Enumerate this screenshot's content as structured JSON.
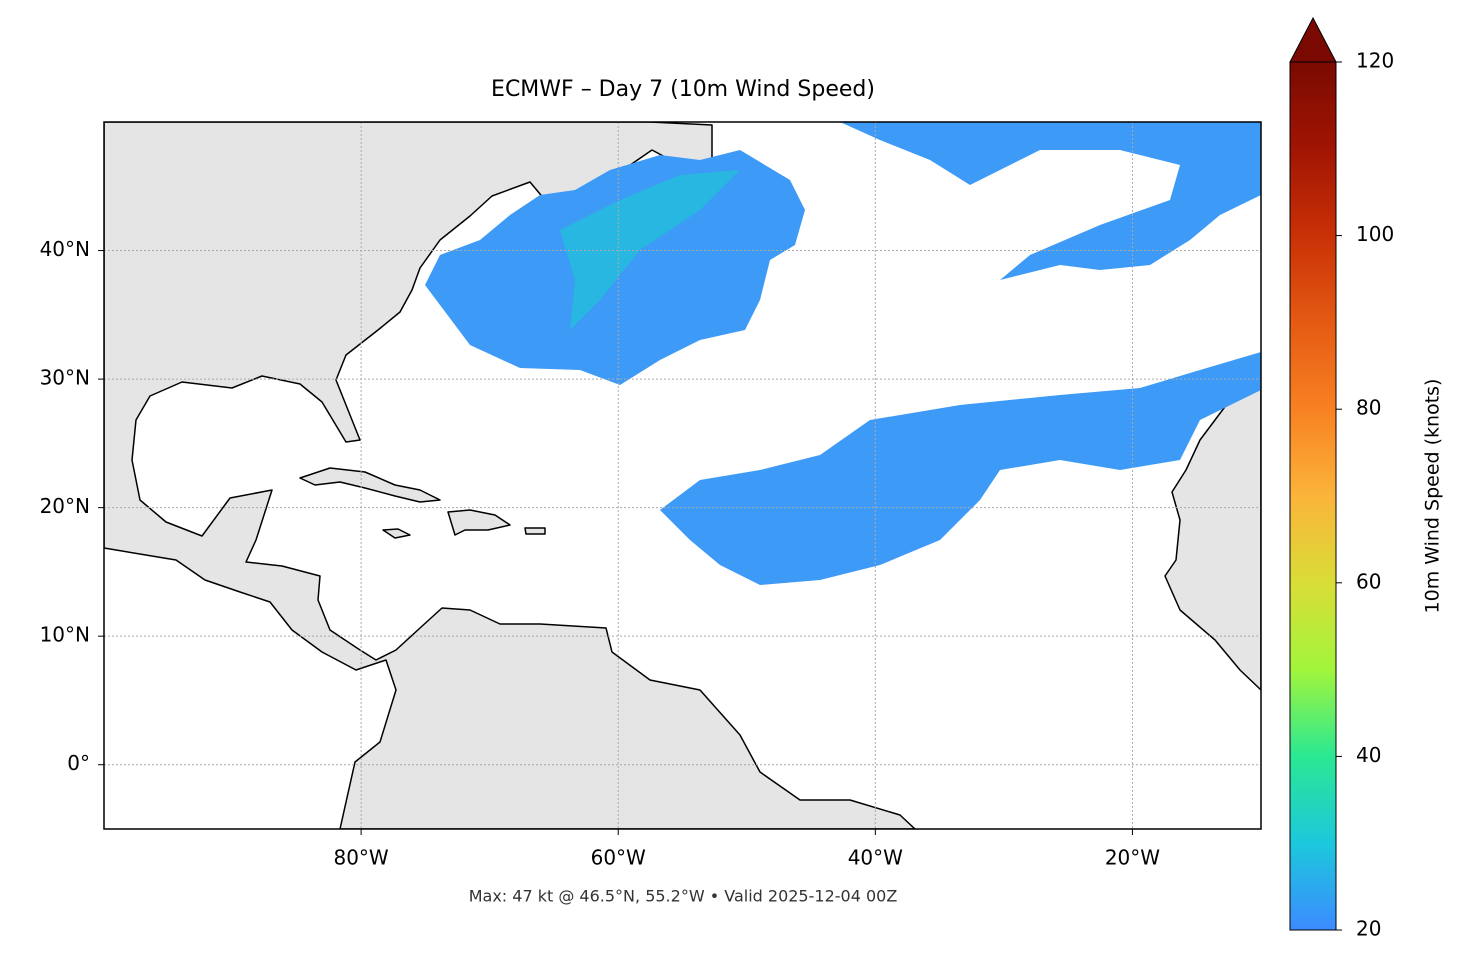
{
  "chart_data": {
    "type": "map",
    "title": "ECMWF – Day 7 (10m Wind Speed)",
    "annotation": "Max: 47 kt @ 46.5°N, 55.2°W • Valid 2025-12-04 00Z",
    "xlim": [
      -100,
      -10
    ],
    "ylim": [
      -5,
      50
    ],
    "xticks": [
      {
        "value": -80,
        "label": "80°W"
      },
      {
        "value": -60,
        "label": "60°W"
      },
      {
        "value": -40,
        "label": "40°W"
      },
      {
        "value": -20,
        "label": "20°W"
      }
    ],
    "yticks": [
      {
        "value": 0,
        "label": "0°"
      },
      {
        "value": 10,
        "label": "10°N"
      },
      {
        "value": 20,
        "label": "20°N"
      },
      {
        "value": 30,
        "label": "30°N"
      },
      {
        "value": 40,
        "label": "40°N"
      }
    ],
    "grid": true,
    "colorbar": {
      "label": "10m Wind Speed (knots)",
      "lim": [
        20,
        120
      ],
      "ticks": [
        20,
        40,
        60,
        80,
        100,
        120
      ]
    }
  }
}
